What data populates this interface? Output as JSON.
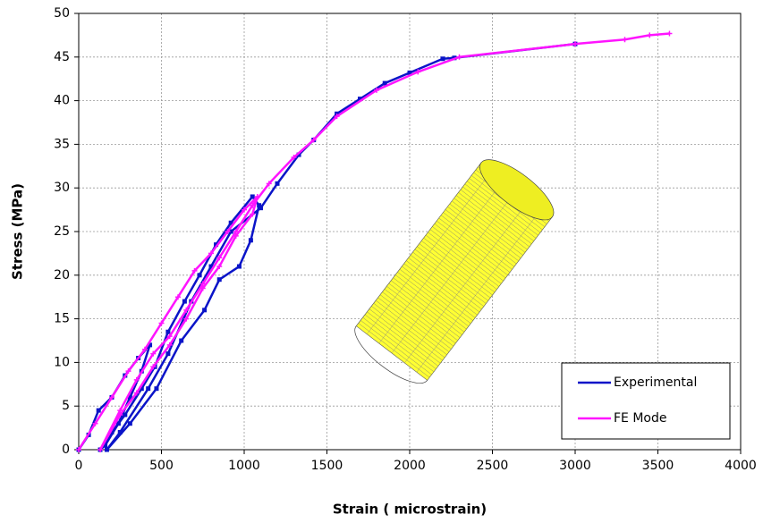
{
  "chart_data": {
    "type": "line",
    "x_label": "Strain ( microstrain)",
    "y_label": "Stress (MPa)",
    "xlim": [
      0,
      4000
    ],
    "xticks": [
      0,
      500,
      1000,
      1500,
      2000,
      2500,
      3000,
      3500,
      4000
    ],
    "ylim": [
      0,
      50
    ],
    "yticks": [
      0,
      5,
      10,
      15,
      20,
      25,
      30,
      35,
      40,
      45,
      50
    ],
    "grid": true,
    "legend": "lower right",
    "series": [
      {
        "name": "Experimental",
        "color": "#0a14c8",
        "marker": "square",
        "x": [
          0,
          60,
          120,
          200,
          280,
          360,
          430,
          380,
          310,
          240,
          160,
          130,
          200,
          280,
          380,
          460,
          540,
          640,
          730,
          830,
          920,
          1050,
          1090,
          1040,
          970,
          850,
          760,
          620,
          470,
          310,
          170,
          250,
          420,
          540,
          680,
          800,
          920,
          1100,
          1200,
          1330,
          1420,
          1560,
          1700,
          1850,
          2000,
          2200,
          2270,
          3000
        ],
        "values": [
          0,
          1.7,
          4.5,
          6,
          8.5,
          10.5,
          12,
          9,
          6,
          3,
          0.5,
          0,
          2,
          4,
          7,
          9.5,
          13.5,
          17,
          20,
          23.5,
          26,
          29,
          28,
          24,
          21,
          19.5,
          16,
          12.5,
          7,
          3,
          0,
          2,
          7,
          11,
          17,
          21,
          25,
          27.7,
          30.5,
          33.8,
          35.5,
          38.5,
          40.2,
          42,
          43.2,
          44.8,
          44.9,
          46.5
        ]
      },
      {
        "name": "FE Mode",
        "color": "#ff14ff",
        "marker": "star",
        "x": [
          0,
          100,
          200,
          300,
          400,
          500,
          600,
          700,
          800,
          900,
          1000,
          1080,
          1050,
          950,
          850,
          750,
          650,
          550,
          450,
          350,
          250,
          130,
          250,
          350,
          450,
          550,
          650,
          750,
          850,
          950,
          1050,
          1150,
          1300,
          1420,
          1560,
          1800,
          2050,
          2300,
          3000,
          3300,
          3450,
          3570
        ],
        "values": [
          0,
          3,
          6,
          9,
          11.5,
          14.5,
          17.5,
          20.5,
          22.5,
          25,
          27.5,
          29,
          27,
          24.5,
          21,
          18.5,
          15,
          12,
          9.5,
          6.5,
          4,
          0,
          4.5,
          8,
          11,
          13,
          16,
          19,
          22,
          25,
          28,
          30.5,
          33.5,
          35.5,
          38.2,
          41.2,
          43.3,
          45,
          46.5,
          47,
          47.5,
          47.7
        ]
      }
    ]
  }
}
